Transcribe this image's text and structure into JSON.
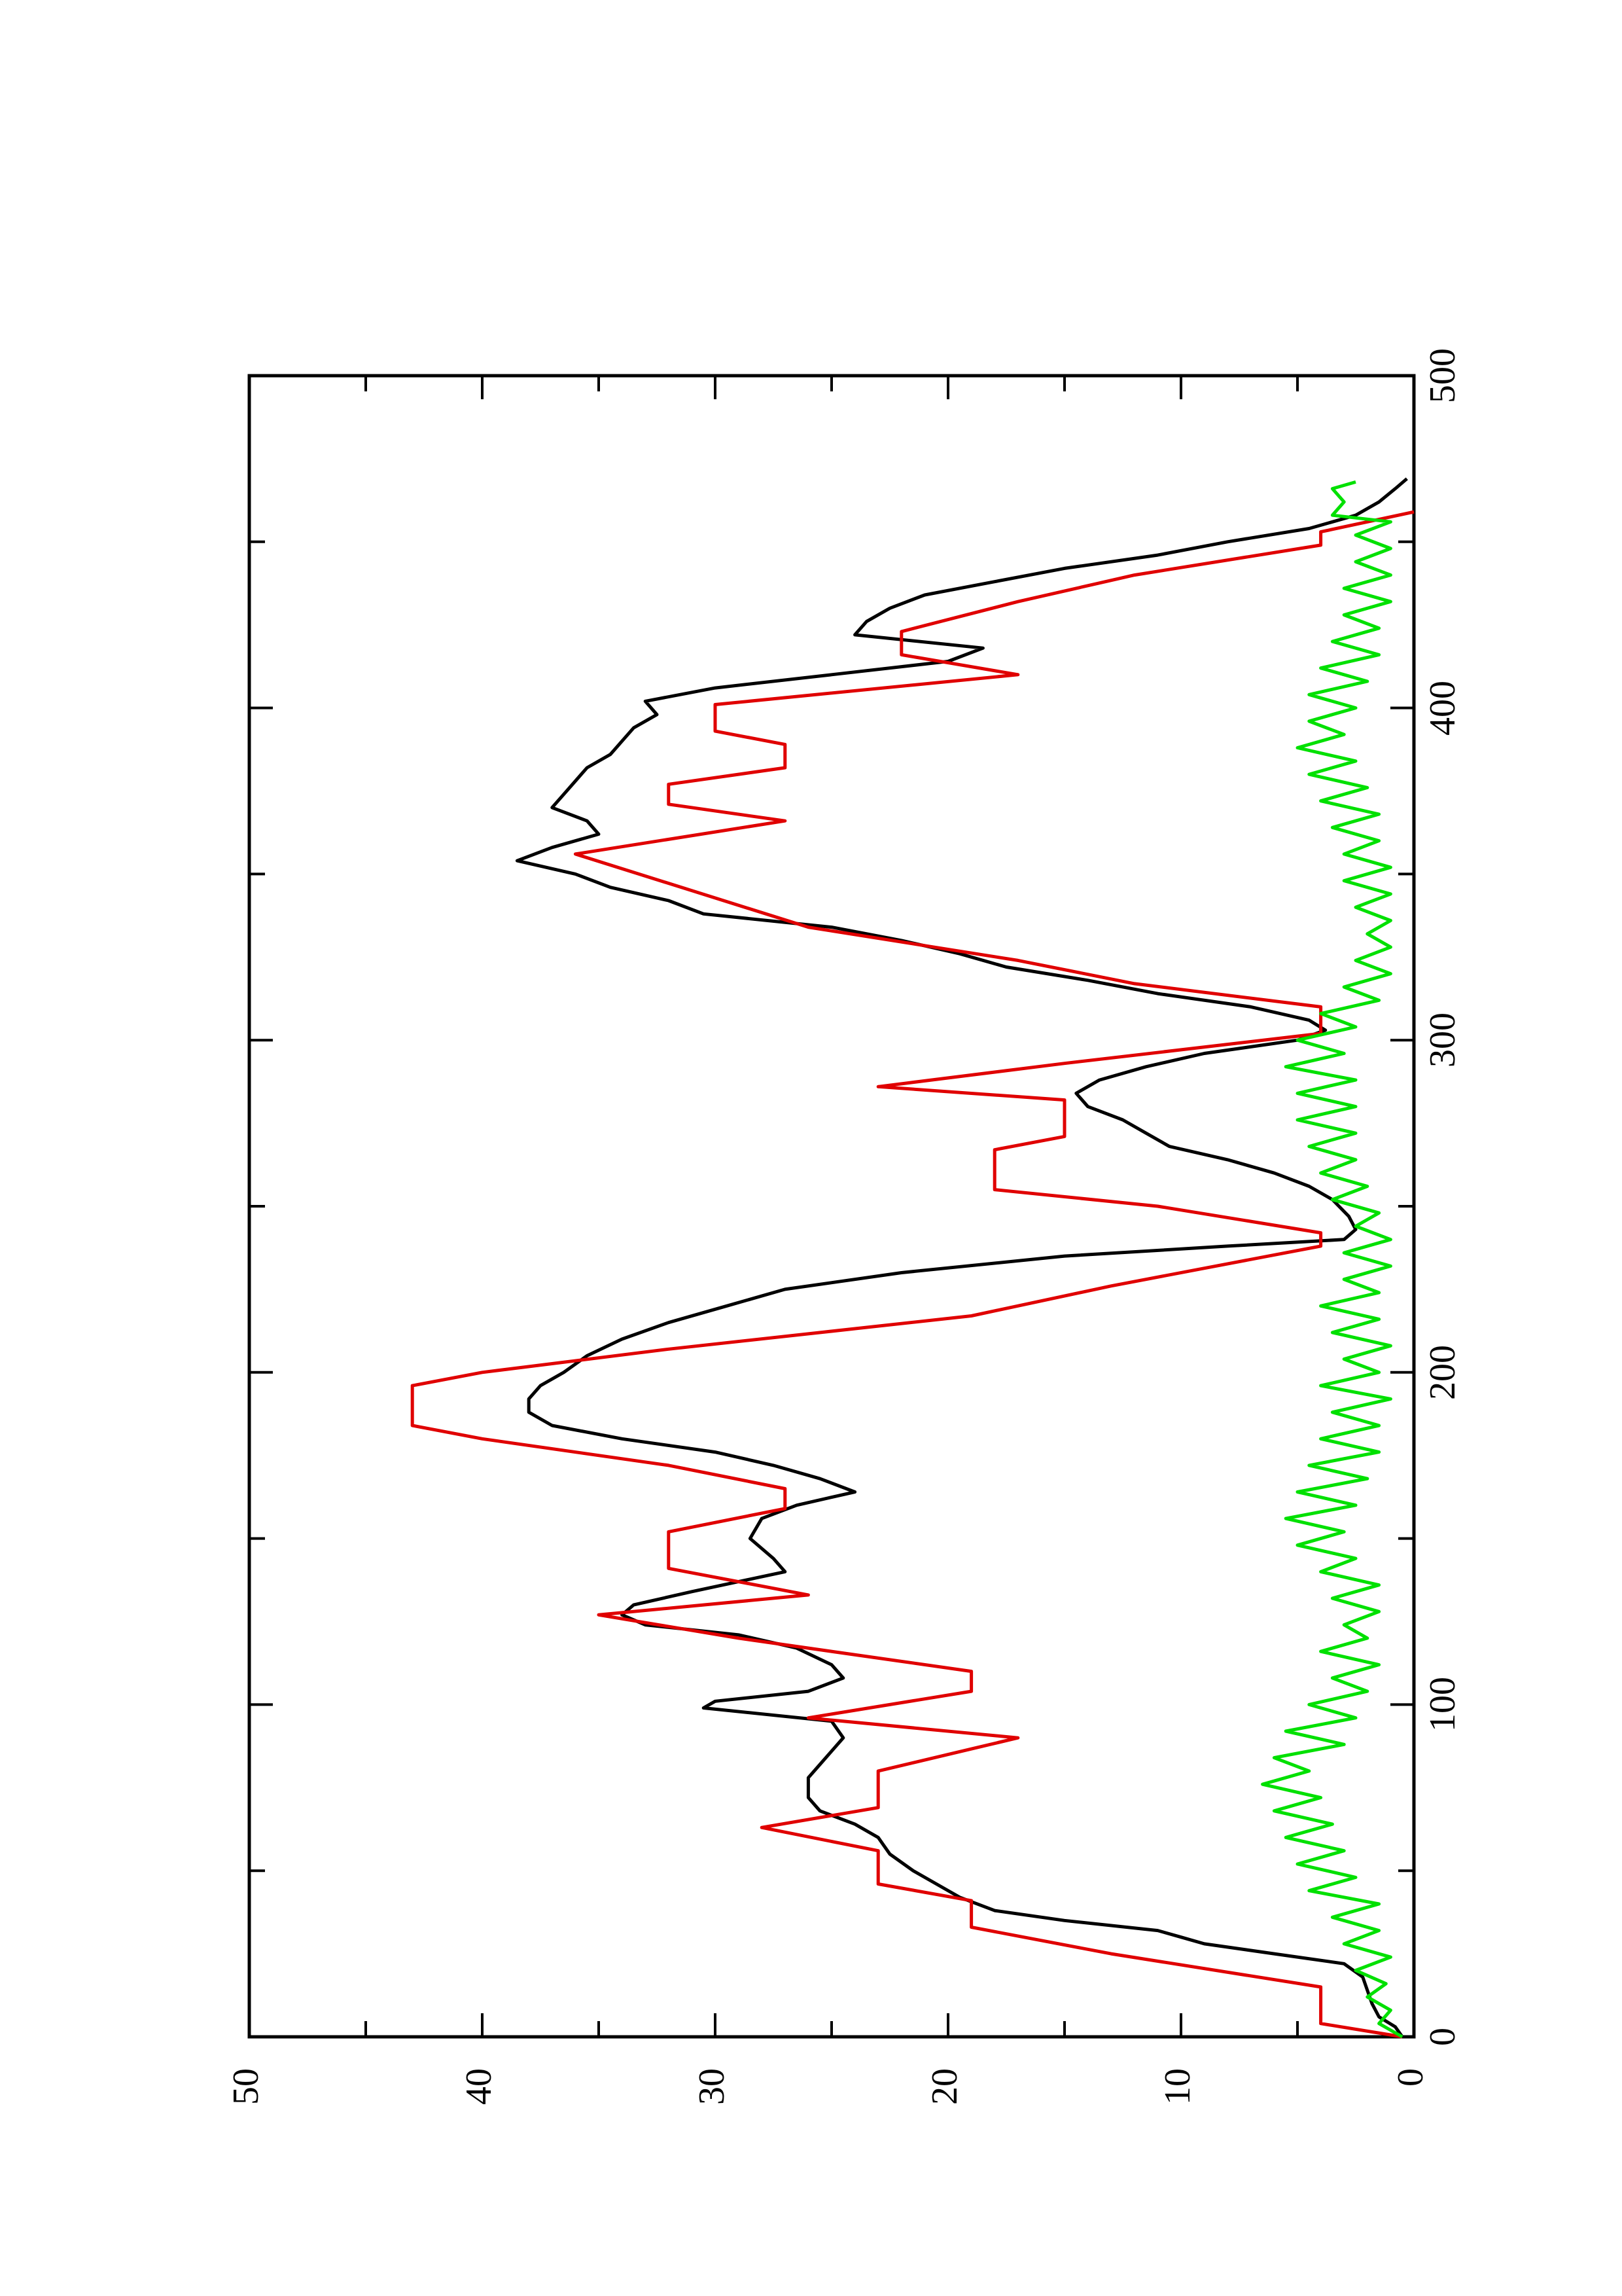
{
  "chart_data": {
    "type": "line",
    "orientation": "rotated-90-ccw",
    "title": "",
    "xlabel": "",
    "ylabel": "",
    "xlim": [
      0,
      500
    ],
    "ylim": [
      0,
      50
    ],
    "x_ticks": [
      "0",
      "100",
      "200",
      "300",
      "400",
      "500"
    ],
    "y_ticks": [
      "0",
      "10",
      "20",
      "30",
      "40",
      "50"
    ],
    "grid": false,
    "legend": null,
    "series": [
      {
        "color": "#000000",
        "style": "line",
        "points": [
          [
            0,
            0.5
          ],
          [
            3,
            0.8
          ],
          [
            6,
            1.5
          ],
          [
            10,
            1.8
          ],
          [
            14,
            2.0
          ],
          [
            18,
            2.2
          ],
          [
            22,
            3.0
          ],
          [
            25,
            6.0
          ],
          [
            28,
            9.0
          ],
          [
            30,
            10.0
          ],
          [
            32,
            11.0
          ],
          [
            35,
            15.0
          ],
          [
            38,
            18.0
          ],
          [
            42,
            19.5
          ],
          [
            46,
            20.5
          ],
          [
            50,
            21.5
          ],
          [
            55,
            22.5
          ],
          [
            60,
            23.0
          ],
          [
            64,
            24.0
          ],
          [
            68,
            25.5
          ],
          [
            72,
            26.0
          ],
          [
            78,
            26.0
          ],
          [
            82,
            25.5
          ],
          [
            86,
            25.0
          ],
          [
            90,
            24.5
          ],
          [
            95,
            25.0
          ],
          [
            99,
            30.5
          ],
          [
            101,
            30.0
          ],
          [
            104,
            26.0
          ],
          [
            108,
            24.5
          ],
          [
            112,
            25.0
          ],
          [
            117,
            26.5
          ],
          [
            121,
            29.0
          ],
          [
            124,
            33.0
          ],
          [
            127,
            34.0
          ],
          [
            130,
            33.5
          ],
          [
            134,
            31.0
          ],
          [
            137,
            29.0
          ],
          [
            140,
            27.0
          ],
          [
            144,
            27.5
          ],
          [
            150,
            28.5
          ],
          [
            156,
            28.0
          ],
          [
            160,
            26.5
          ],
          [
            164,
            24.0
          ],
          [
            168,
            25.5
          ],
          [
            172,
            27.5
          ],
          [
            176,
            30.0
          ],
          [
            180,
            34.0
          ],
          [
            184,
            37.0
          ],
          [
            188,
            38.0
          ],
          [
            192,
            38.0
          ],
          [
            196,
            37.5
          ],
          [
            200,
            36.5
          ],
          [
            205,
            35.5
          ],
          [
            210,
            34.0
          ],
          [
            215,
            32.0
          ],
          [
            220,
            29.5
          ],
          [
            225,
            27.0
          ],
          [
            230,
            22.0
          ],
          [
            235,
            15.0
          ],
          [
            238,
            8.0
          ],
          [
            240,
            3.0
          ],
          [
            243,
            2.5
          ],
          [
            247,
            2.8
          ],
          [
            252,
            3.5
          ],
          [
            256,
            4.5
          ],
          [
            260,
            6.0
          ],
          [
            264,
            8.0
          ],
          [
            268,
            10.5
          ],
          [
            272,
            11.5
          ],
          [
            276,
            12.5
          ],
          [
            280,
            14.0
          ],
          [
            284,
            14.5
          ],
          [
            288,
            13.5
          ],
          [
            292,
            11.5
          ],
          [
            296,
            9.0
          ],
          [
            300,
            5.0
          ],
          [
            303,
            3.8
          ],
          [
            306,
            4.5
          ],
          [
            310,
            7.0
          ],
          [
            314,
            11.0
          ],
          [
            318,
            14.0
          ],
          [
            322,
            17.5
          ],
          [
            326,
            19.5
          ],
          [
            330,
            22.0
          ],
          [
            334,
            25.0
          ],
          [
            338,
            30.5
          ],
          [
            342,
            32.0
          ],
          [
            346,
            34.5
          ],
          [
            350,
            36.0
          ],
          [
            354,
            38.5
          ],
          [
            358,
            37.0
          ],
          [
            362,
            35.0
          ],
          [
            366,
            35.5
          ],
          [
            370,
            37.0
          ],
          [
            374,
            36.5
          ],
          [
            378,
            36.0
          ],
          [
            382,
            35.5
          ],
          [
            386,
            34.5
          ],
          [
            390,
            34.0
          ],
          [
            394,
            33.5
          ],
          [
            398,
            32.5
          ],
          [
            402,
            33.0
          ],
          [
            406,
            30.0
          ],
          [
            410,
            25.0
          ],
          [
            414,
            20.0
          ],
          [
            418,
            18.5
          ],
          [
            422,
            24.0
          ],
          [
            426,
            23.5
          ],
          [
            430,
            22.5
          ],
          [
            434,
            21.0
          ],
          [
            438,
            18.0
          ],
          [
            442,
            15.0
          ],
          [
            446,
            11.0
          ],
          [
            450,
            8.0
          ],
          [
            454,
            4.5
          ],
          [
            458,
            2.5
          ],
          [
            462,
            1.5
          ],
          [
            466,
            0.8
          ],
          [
            469,
            0.3
          ]
        ]
      },
      {
        "color": "#e00000",
        "style": "line",
        "points": [
          [
            0,
            0.5
          ],
          [
            4,
            4
          ],
          [
            15,
            4
          ],
          [
            25,
            13
          ],
          [
            33,
            19
          ],
          [
            41,
            19
          ],
          [
            46,
            23
          ],
          [
            56,
            23
          ],
          [
            63,
            28
          ],
          [
            69,
            23
          ],
          [
            80,
            23
          ],
          [
            90,
            17
          ],
          [
            96,
            26
          ],
          [
            104,
            19
          ],
          [
            110,
            19
          ],
          [
            120,
            29
          ],
          [
            127,
            35
          ],
          [
            133,
            26
          ],
          [
            141,
            32
          ],
          [
            152,
            32
          ],
          [
            159,
            27
          ],
          [
            165,
            27
          ],
          [
            172,
            32
          ],
          [
            180,
            40
          ],
          [
            184,
            43
          ],
          [
            196,
            43
          ],
          [
            200,
            40
          ],
          [
            207,
            32
          ],
          [
            217,
            19
          ],
          [
            226,
            13
          ],
          [
            238,
            4
          ],
          [
            242,
            4
          ],
          [
            250,
            11
          ],
          [
            255,
            18
          ],
          [
            267,
            18
          ],
          [
            271,
            15
          ],
          [
            282,
            15
          ],
          [
            286,
            23
          ],
          [
            293,
            15
          ],
          [
            302,
            4
          ],
          [
            310,
            4
          ],
          [
            317,
            12
          ],
          [
            324,
            17
          ],
          [
            334,
            26
          ],
          [
            345,
            31
          ],
          [
            356,
            36
          ],
          [
            366,
            27
          ],
          [
            371,
            32
          ],
          [
            377,
            32
          ],
          [
            382,
            27
          ],
          [
            389,
            27
          ],
          [
            393,
            30
          ],
          [
            401,
            30
          ],
          [
            410,
            17
          ],
          [
            416,
            22
          ],
          [
            423,
            22
          ],
          [
            432,
            17
          ],
          [
            440,
            12
          ],
          [
            449,
            4
          ],
          [
            453,
            4
          ],
          [
            459,
            0
          ]
        ]
      },
      {
        "color": "#00e000",
        "style": "line",
        "points": [
          [
            0,
            0.5
          ],
          [
            4,
            1.5
          ],
          [
            8,
            1.0
          ],
          [
            12,
            2.0
          ],
          [
            16,
            1.2
          ],
          [
            20,
            2.5
          ],
          [
            24,
            1.0
          ],
          [
            28,
            3.0
          ],
          [
            32,
            1.5
          ],
          [
            36,
            3.5
          ],
          [
            40,
            1.5
          ],
          [
            44,
            4.5
          ],
          [
            48,
            2.5
          ],
          [
            52,
            5.0
          ],
          [
            56,
            3.0
          ],
          [
            60,
            5.5
          ],
          [
            64,
            3.5
          ],
          [
            68,
            6.0
          ],
          [
            72,
            4.0
          ],
          [
            76,
            6.5
          ],
          [
            80,
            4.5
          ],
          [
            84,
            6.0
          ],
          [
            88,
            3.0
          ],
          [
            92,
            5.5
          ],
          [
            96,
            2.5
          ],
          [
            100,
            4.5
          ],
          [
            104,
            2.0
          ],
          [
            108,
            3.5
          ],
          [
            112,
            1.5
          ],
          [
            116,
            4.0
          ],
          [
            120,
            2.0
          ],
          [
            124,
            3.0
          ],
          [
            128,
            1.5
          ],
          [
            132,
            3.5
          ],
          [
            136,
            1.5
          ],
          [
            140,
            4.0
          ],
          [
            144,
            2.5
          ],
          [
            148,
            5.0
          ],
          [
            152,
            3.0
          ],
          [
            156,
            5.5
          ],
          [
            160,
            2.5
          ],
          [
            164,
            5.0
          ],
          [
            168,
            2.0
          ],
          [
            172,
            4.5
          ],
          [
            176,
            1.5
          ],
          [
            180,
            4.0
          ],
          [
            184,
            1.5
          ],
          [
            188,
            3.5
          ],
          [
            192,
            1.0
          ],
          [
            196,
            4.0
          ],
          [
            200,
            1.5
          ],
          [
            204,
            3.0
          ],
          [
            208,
            1.0
          ],
          [
            212,
            3.5
          ],
          [
            216,
            1.5
          ],
          [
            220,
            4.0
          ],
          [
            224,
            1.5
          ],
          [
            228,
            3.0
          ],
          [
            232,
            1.0
          ],
          [
            236,
            3.0
          ],
          [
            240,
            1.0
          ],
          [
            244,
            2.5
          ],
          [
            248,
            1.5
          ],
          [
            252,
            3.5
          ],
          [
            256,
            2.0
          ],
          [
            260,
            4.0
          ],
          [
            264,
            2.5
          ],
          [
            268,
            4.5
          ],
          [
            272,
            2.5
          ],
          [
            276,
            5.0
          ],
          [
            280,
            2.5
          ],
          [
            284,
            5.0
          ],
          [
            288,
            2.5
          ],
          [
            292,
            5.5
          ],
          [
            296,
            3.0
          ],
          [
            300,
            5.0
          ],
          [
            304,
            2.5
          ],
          [
            308,
            4.0
          ],
          [
            312,
            1.5
          ],
          [
            316,
            3.0
          ],
          [
            320,
            1.0
          ],
          [
            324,
            2.5
          ],
          [
            328,
            1.0
          ],
          [
            332,
            2.0
          ],
          [
            336,
            1.0
          ],
          [
            340,
            2.5
          ],
          [
            344,
            1.0
          ],
          [
            348,
            3.0
          ],
          [
            352,
            1.0
          ],
          [
            356,
            3.0
          ],
          [
            360,
            1.5
          ],
          [
            364,
            3.5
          ],
          [
            368,
            1.5
          ],
          [
            372,
            4.0
          ],
          [
            376,
            2.0
          ],
          [
            380,
            4.5
          ],
          [
            384,
            2.5
          ],
          [
            388,
            5.0
          ],
          [
            392,
            3.0
          ],
          [
            396,
            4.5
          ],
          [
            400,
            2.5
          ],
          [
            404,
            4.5
          ],
          [
            408,
            2.0
          ],
          [
            412,
            4.0
          ],
          [
            416,
            1.5
          ],
          [
            420,
            3.5
          ],
          [
            424,
            1.5
          ],
          [
            428,
            3.0
          ],
          [
            432,
            1.0
          ],
          [
            436,
            3.0
          ],
          [
            440,
            1.0
          ],
          [
            444,
            2.5
          ],
          [
            448,
            1.0
          ],
          [
            452,
            2.5
          ],
          [
            456,
            1.0
          ],
          [
            458,
            3.5
          ],
          [
            462,
            3.0
          ],
          [
            466,
            3.5
          ],
          [
            468,
            2.5
          ]
        ]
      }
    ]
  }
}
